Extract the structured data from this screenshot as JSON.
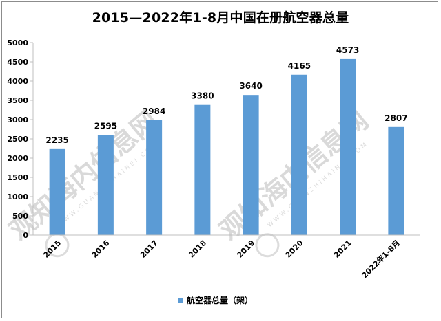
{
  "chart_data": {
    "type": "bar",
    "title": "2015—2022年1-8月中国在册航空器总量",
    "categories": [
      "2015",
      "2016",
      "2017",
      "2018",
      "2019",
      "2020",
      "2021",
      "2022年1-8月"
    ],
    "series": [
      {
        "name": "航空器总量（架）",
        "values": [
          2235,
          2595,
          2984,
          3380,
          3640,
          4165,
          4573,
          2807
        ]
      }
    ],
    "xlabel": "",
    "ylabel": "",
    "ylim": [
      0,
      5000
    ],
    "yticks": [
      0,
      500,
      1000,
      1500,
      2000,
      2500,
      3000,
      3500,
      4000,
      4500,
      5000
    ],
    "grid": false,
    "legend": "bottom",
    "bar_color": "#5b9bd5",
    "data_labels": true
  },
  "watermark": {
    "text": "观知海内信息网",
    "sub": "WWW.GUANZHIHAINEI.COM",
    "color": "#d9d9d9"
  }
}
